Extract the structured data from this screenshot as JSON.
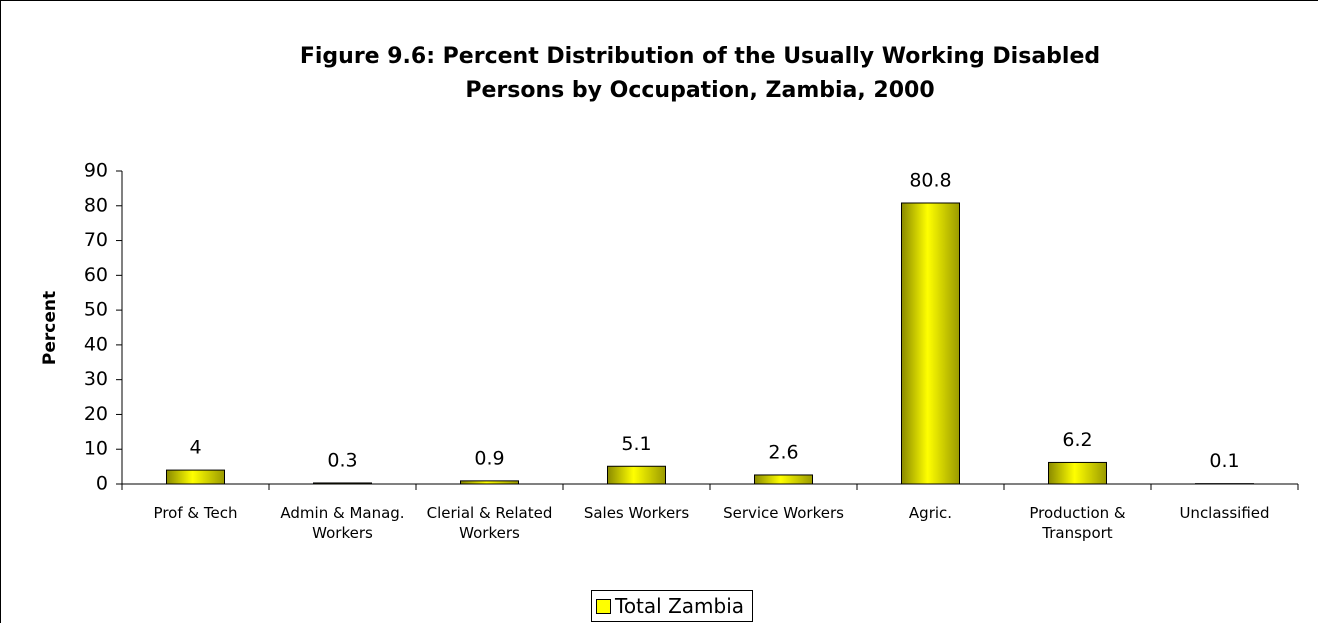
{
  "chart_data": {
    "type": "bar",
    "title": "Figure 9.6: Percent Distribution of the Usually Working Disabled Persons by Occupation, Zambia, 2000",
    "y_label": "Percent",
    "categories": [
      "Prof & Tech",
      "Admin & Manag. Workers",
      "Clerial & Related Workers",
      "Sales Workers",
      "Service Workers",
      "Agric.",
      "Production & Transport",
      "Unclassified"
    ],
    "series": [
      {
        "name": "Total Zambia",
        "color": "#ffff00",
        "values": [
          4,
          0.3,
          0.9,
          5.1,
          2.6,
          80.8,
          6.2,
          0.1
        ]
      }
    ],
    "ylim": [
      0,
      90
    ],
    "yticks": [
      0,
      10,
      20,
      30,
      40,
      50,
      60,
      70,
      80,
      90
    ],
    "grid": false,
    "legend": "bottom"
  }
}
